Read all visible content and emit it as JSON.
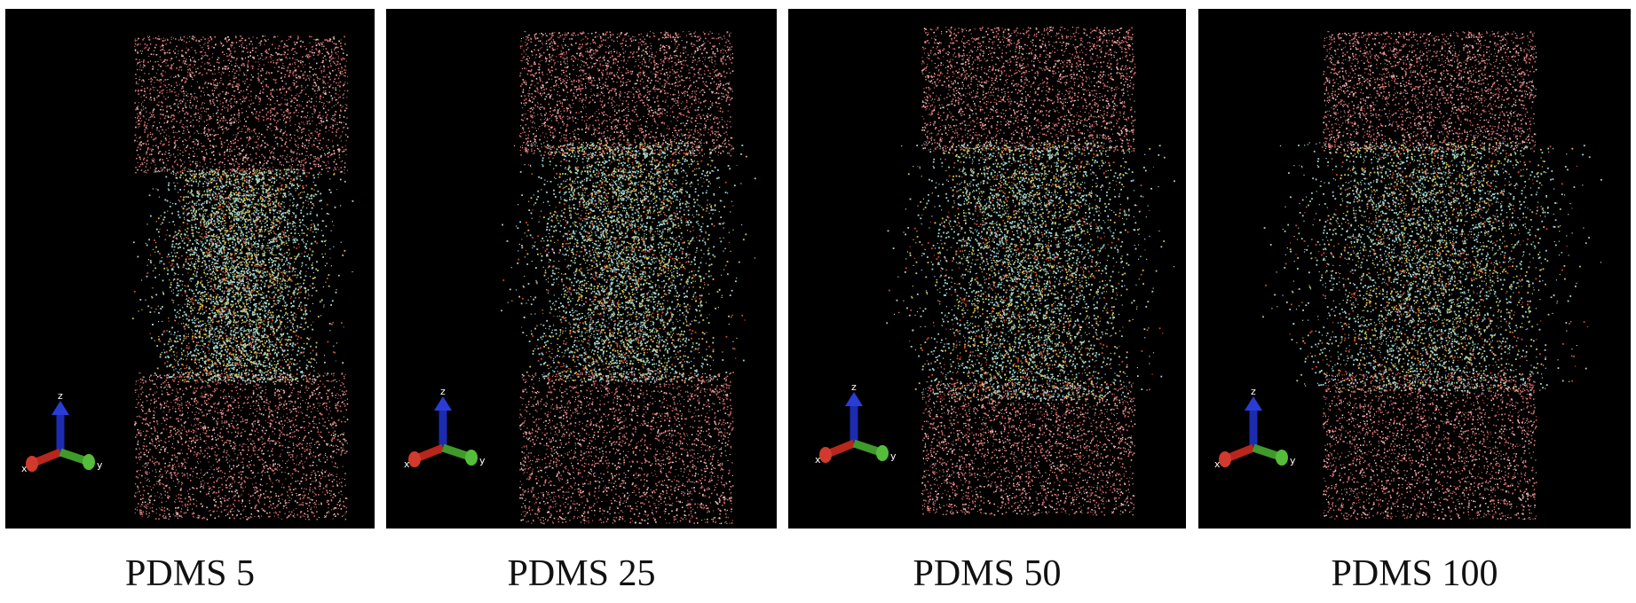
{
  "figure": {
    "panels": [
      {
        "label": "PDMS 5",
        "axes": {
          "x": "x",
          "y": "y",
          "z": "z"
        }
      },
      {
        "label": "PDMS 25",
        "axes": {
          "x": "x",
          "y": "y",
          "z": "z"
        }
      },
      {
        "label": "PDMS 50",
        "axes": {
          "x": "x",
          "y": "y",
          "z": "z"
        }
      },
      {
        "label": "PDMS 100",
        "axes": {
          "x": "x",
          "y": "y",
          "z": "z"
        }
      }
    ],
    "colors": {
      "background": "#000000",
      "water": "#d86a6a",
      "water_light": "#f0c0c0",
      "polymer_cyan": "#9fd6d2",
      "polymer_yellow": "#d8c04a",
      "polymer_red": "#d2462a",
      "axis_x": "#b8261c",
      "axis_y": "#3f9a2a",
      "axis_z": "#1c2bb0"
    },
    "icons": [
      "xyz-axes-icon"
    ]
  }
}
